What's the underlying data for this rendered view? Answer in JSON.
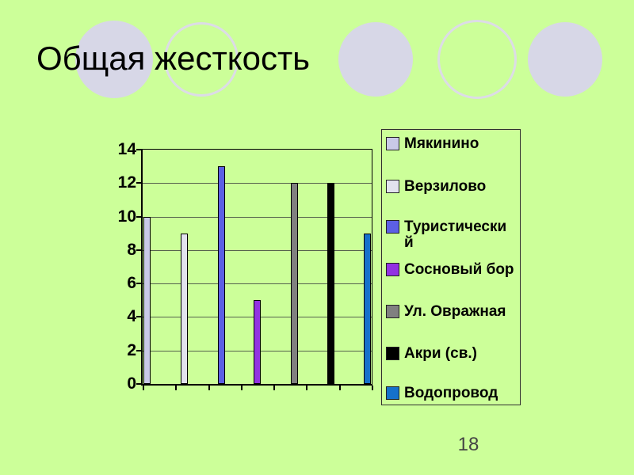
{
  "slide": {
    "title": "Общая жесткость",
    "page_number": "18",
    "background_color": "#ccff99"
  },
  "chart_data": {
    "type": "bar",
    "title": "",
    "xlabel": "",
    "ylabel": "",
    "categories": [
      "Мякинино",
      "Верзилово",
      "Туристический",
      "Сосновый бор",
      "Ул. Овражная",
      "Акри (св.)",
      "Водопровод"
    ],
    "series": [
      {
        "name": "Мякинино",
        "value": 10,
        "color": "#c9c9e8"
      },
      {
        "name": "Верзилово",
        "value": 9,
        "color": "#e2e2ee"
      },
      {
        "name": "Туристический",
        "value": 13,
        "color": "#5c5fe4",
        "legend_lines": [
          "Туристически",
          "й"
        ]
      },
      {
        "name": "Сосновый бор",
        "value": 5,
        "color": "#9232e2"
      },
      {
        "name": "Ул. Овражная",
        "value": 12,
        "color": "#808080"
      },
      {
        "name": "Акри (св.)",
        "value": 12,
        "color": "#000000"
      },
      {
        "name": "Водопровод",
        "value": 9,
        "color": "#1571cb"
      }
    ],
    "ylim": [
      0,
      14
    ],
    "yticks": [
      0,
      2,
      4,
      6,
      8,
      10,
      12,
      14
    ],
    "grid": "horizontal",
    "legend_position": "right",
    "plot_background": "transparent"
  }
}
